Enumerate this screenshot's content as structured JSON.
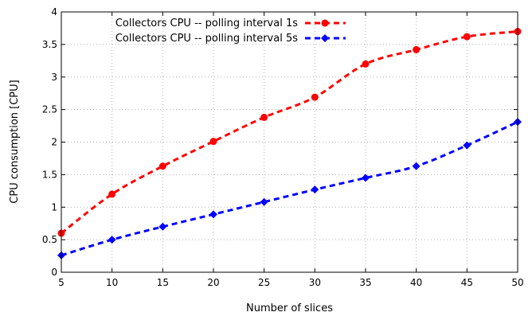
{
  "chart_data": {
    "type": "line",
    "xlabel": "Number of slices",
    "ylabel": "CPU consumption [CPU]",
    "xlim": [
      5,
      50
    ],
    "ylim": [
      0,
      4
    ],
    "xticks": [
      5,
      10,
      15,
      20,
      25,
      30,
      35,
      40,
      45,
      50
    ],
    "yticks": [
      0,
      0.5,
      1,
      1.5,
      2,
      2.5,
      3,
      3.5,
      4
    ],
    "xtick_labels": [
      "5",
      "10",
      "15",
      "20",
      "25",
      "30",
      "35",
      "40",
      "45",
      "50"
    ],
    "ytick_labels": [
      "0",
      "0.5",
      "1",
      "1.5",
      "2",
      "2.5",
      "3",
      "3.5",
      "4"
    ],
    "grid": true,
    "legend_position": "top-left",
    "x": [
      5,
      10,
      15,
      20,
      25,
      30,
      35,
      40,
      45,
      50
    ],
    "series": [
      {
        "name": "Collectors CPU -- polling interval 1s",
        "values": [
          0.6,
          1.2,
          1.63,
          2.01,
          2.38,
          2.69,
          3.2,
          3.42,
          3.62,
          3.7
        ],
        "color": "#ff0000",
        "marker": "circle",
        "line_style": "dashed",
        "smooth": true
      },
      {
        "name": "Collectors CPU -- polling interval 5s",
        "values": [
          0.26,
          0.5,
          0.7,
          0.89,
          1.08,
          1.27,
          1.45,
          1.63,
          1.95,
          2.31
        ],
        "color": "#0000ff",
        "marker": "diamond",
        "line_style": "dashed",
        "smooth": true
      }
    ]
  }
}
